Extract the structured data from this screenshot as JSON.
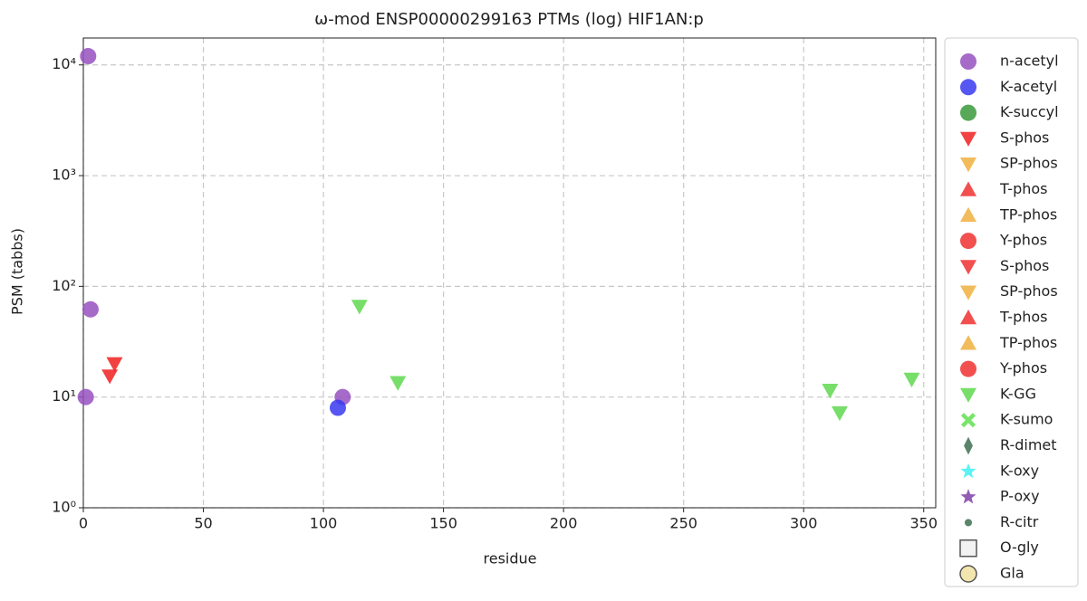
{
  "chart_data": {
    "type": "scatter",
    "title": "ω-mod ENSP00000299163 PTMs (log) HIF1AN:p",
    "x_label": "residue",
    "y_label": "PSM (tabbs)",
    "xlim": [
      0,
      355
    ],
    "ylim": [
      1,
      17500
    ],
    "log_y": true,
    "grid": true,
    "legend": "outside right",
    "xticks": [
      0,
      50,
      100,
      150,
      200,
      250,
      300,
      350
    ],
    "yticks": [
      {
        "value": 1,
        "label": "10⁰"
      },
      {
        "value": 10,
        "label": "10¹"
      },
      {
        "value": 100,
        "label": "10²"
      },
      {
        "value": 1000,
        "label": "10³"
      },
      {
        "value": 10000,
        "label": "10⁴"
      }
    ],
    "series": [
      {
        "name": "n-acetyl",
        "color": "#9650c0",
        "marker": "circle",
        "x": [
          2,
          3,
          1,
          108
        ],
        "values": [
          12000,
          62,
          10,
          10
        ]
      },
      {
        "name": "K-acetyl",
        "color": "#3838f0",
        "marker": "circle",
        "x": [
          106
        ],
        "values": [
          8
        ]
      },
      {
        "name": "K-succyl",
        "color": "#3a9a3a",
        "marker": "circle",
        "x": [],
        "values": []
      },
      {
        "name": "S-phos",
        "color": "#f02020",
        "marker": "triangle-down",
        "x": [
          11,
          13
        ],
        "values": [
          15.5,
          20
        ]
      },
      {
        "name": "SP-phos",
        "color": "#f0b040",
        "marker": "triangle-down",
        "x": [],
        "values": []
      },
      {
        "name": "T-phos",
        "color": "#f03030",
        "marker": "triangle-up",
        "x": [],
        "values": []
      },
      {
        "name": "TP-phos",
        "color": "#f0b040",
        "marker": "triangle-up",
        "x": [],
        "values": []
      },
      {
        "name": "Y-phos",
        "color": "#f03030",
        "marker": "circle",
        "x": [],
        "values": []
      },
      {
        "name": "S-phos",
        "color": "#f03030",
        "marker": "triangle-down",
        "x": [],
        "values": []
      },
      {
        "name": "SP-phos",
        "color": "#f0b040",
        "marker": "triangle-down",
        "x": [],
        "values": []
      },
      {
        "name": "T-phos",
        "color": "#f03030",
        "marker": "triangle-up",
        "x": [],
        "values": []
      },
      {
        "name": "TP-phos",
        "color": "#f0b040",
        "marker": "triangle-up",
        "x": [],
        "values": []
      },
      {
        "name": "Y-phos",
        "color": "#f03030",
        "marker": "circle",
        "x": [],
        "values": []
      },
      {
        "name": "K-GG",
        "color": "#60d850",
        "marker": "triangle-down",
        "x": [
          115,
          131,
          311,
          315,
          345
        ],
        "values": [
          66,
          13.5,
          11.5,
          7.2,
          14.5
        ]
      },
      {
        "name": "K-sumo",
        "color": "#60e050",
        "marker": "x",
        "x": [],
        "values": []
      },
      {
        "name": "R-dimet",
        "color": "#3e7050",
        "marker": "diamond",
        "x": [],
        "values": []
      },
      {
        "name": "K-oxy",
        "color": "#40f0f0",
        "marker": "star",
        "x": [],
        "values": []
      },
      {
        "name": "P-oxy",
        "color": "#8040a8",
        "marker": "star",
        "x": [],
        "values": []
      },
      {
        "name": "R-citr",
        "color": "#3e7050",
        "marker": "dot",
        "x": [],
        "values": []
      },
      {
        "name": "O-gly",
        "color": "#f0f0f0",
        "marker": "square",
        "x": [],
        "values": []
      },
      {
        "name": "Gla",
        "color": "#f0e0a0",
        "marker": "circle-outline",
        "x": [],
        "values": []
      }
    ]
  }
}
